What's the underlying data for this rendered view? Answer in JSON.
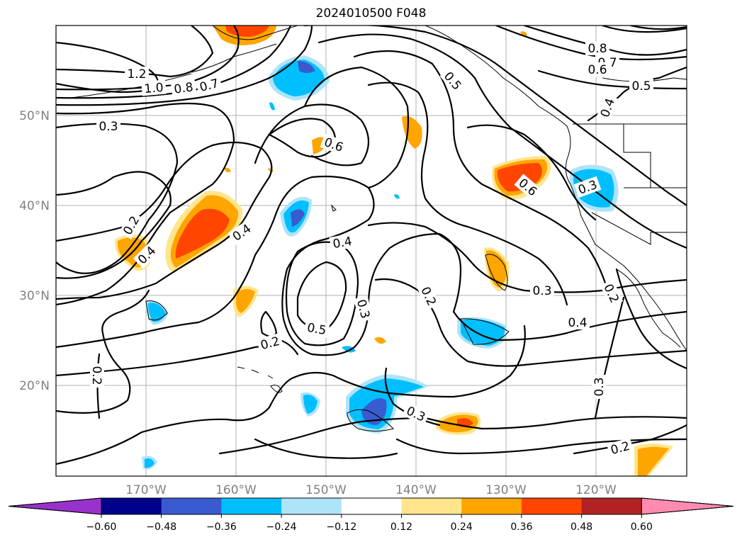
{
  "title": "2024010500 F048",
  "lon_labels": [
    "170°W",
    "160°W",
    "150°W",
    "140°W",
    "130°W",
    "120°W"
  ],
  "lat_labels": [
    "50°N",
    "40°N",
    "30°N",
    "20°N"
  ],
  "contour_labels": [
    "1.2",
    "1.0",
    "0.8",
    "0.7",
    "0.3",
    "0.2",
    "0.4",
    "0.4",
    "0.6",
    "0.4",
    "0.5",
    "0.3",
    "0.2",
    "0.2",
    "0.5",
    "0.6",
    "0.3",
    "0.8",
    "0.7",
    "0.6",
    "0.5",
    "0.4",
    "0.3",
    "0.2",
    "0.4",
    "0.3",
    "0.3",
    "0.2",
    "0.2"
  ],
  "colorbar": {
    "ticks": [
      "−0.60",
      "−0.48",
      "−0.36",
      "−0.24",
      "−0.12",
      "0.12",
      "0.24",
      "0.36",
      "0.48",
      "0.60"
    ],
    "colors": [
      "#9932cc",
      "#00008b",
      "#3a5bd0",
      "#00bfff",
      "#aee4f8",
      "#ffffff",
      "#ffe68c",
      "#ffa500",
      "#ff4500",
      "#b22222",
      "#ff8cb0"
    ]
  }
}
